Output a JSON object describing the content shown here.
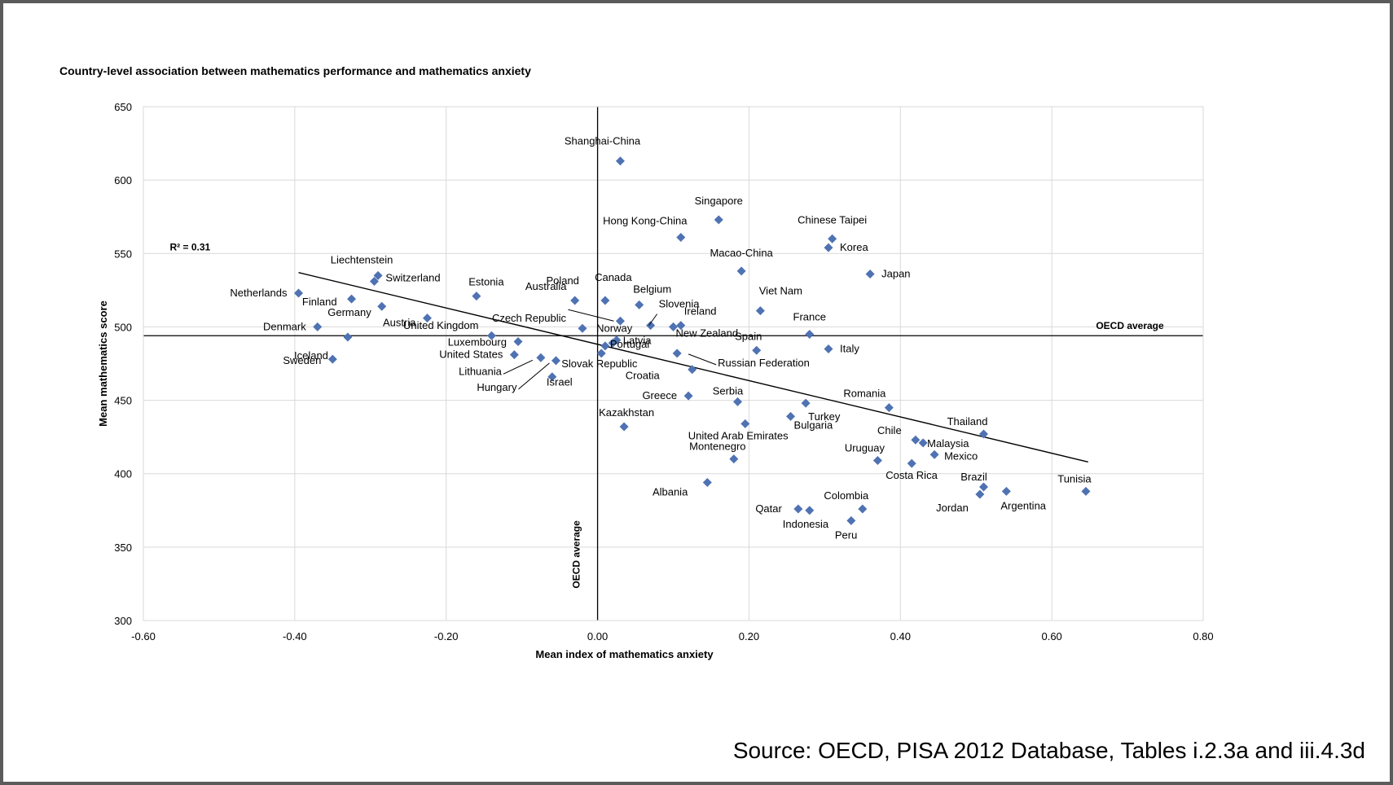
{
  "source": "Source: OECD, PISA 2012 Database, Tables i.2.3a and iii.4.3d",
  "chart_data": {
    "type": "scatter",
    "title": "Country-level association between mathematics performance and mathematics anxiety",
    "xlabel": "Mean index of mathematics anxiety",
    "ylabel": "Mean mathematics score",
    "xlim": [
      -0.6,
      0.8
    ],
    "ylim": [
      300,
      650
    ],
    "x_ticks": [
      -0.6,
      -0.4,
      -0.2,
      0.0,
      0.2,
      0.4,
      0.6,
      0.8
    ],
    "x_tick_labels": [
      "-0.60",
      "-0.40",
      "-0.20",
      "0.00",
      "0.20",
      "0.40",
      "0.60",
      "0.80"
    ],
    "y_ticks": [
      300,
      350,
      400,
      450,
      500,
      550,
      600,
      650
    ],
    "y_tick_labels": [
      "300",
      "350",
      "400",
      "450",
      "500",
      "550",
      "600",
      "650"
    ],
    "grid": true,
    "marker": "diamond",
    "marker_color": "#4f72b2",
    "r_squared_label": "R² = 0.31",
    "oecd_average_label": "OECD average",
    "oecd_average_x": 0.0,
    "oecd_average_y": 494,
    "trendline": {
      "x": [
        -0.395,
        0.648
      ],
      "y": [
        537,
        408
      ]
    },
    "points": [
      {
        "name": "Shanghai-China",
        "x": 0.03,
        "y": 613
      },
      {
        "name": "Singapore",
        "x": 0.16,
        "y": 573
      },
      {
        "name": "Hong Kong-China",
        "x": 0.11,
        "y": 561
      },
      {
        "name": "Chinese Taipei",
        "x": 0.31,
        "y": 560
      },
      {
        "name": "Korea",
        "x": 0.305,
        "y": 554
      },
      {
        "name": "Macao-China",
        "x": 0.19,
        "y": 538
      },
      {
        "name": "Japan",
        "x": 0.36,
        "y": 536
      },
      {
        "name": "Liechtenstein",
        "x": -0.29,
        "y": 535
      },
      {
        "name": "Switzerland",
        "x": -0.295,
        "y": 531
      },
      {
        "name": "Netherlands",
        "x": -0.395,
        "y": 523
      },
      {
        "name": "Estonia",
        "x": -0.16,
        "y": 521
      },
      {
        "name": "Finland",
        "x": -0.325,
        "y": 519
      },
      {
        "name": "Canada",
        "x": 0.01,
        "y": 518
      },
      {
        "name": "Poland",
        "x": -0.03,
        "y": 518
      },
      {
        "name": "Belgium",
        "x": 0.055,
        "y": 515
      },
      {
        "name": "Germany",
        "x": -0.285,
        "y": 514
      },
      {
        "name": "Viet Nam",
        "x": 0.215,
        "y": 511
      },
      {
        "name": "Austria",
        "x": -0.225,
        "y": 506
      },
      {
        "name": "Australia",
        "x": 0.03,
        "y": 504
      },
      {
        "name": "Ireland",
        "x": 0.11,
        "y": 501
      },
      {
        "name": "Slovenia",
        "x": 0.07,
        "y": 501
      },
      {
        "name": "Denmark",
        "x": -0.37,
        "y": 500
      },
      {
        "name": "New Zealand",
        "x": 0.1,
        "y": 500
      },
      {
        "name": "Czech Republic",
        "x": -0.02,
        "y": 499
      },
      {
        "name": "France",
        "x": 0.28,
        "y": 495
      },
      {
        "name": "United Kingdom",
        "x": -0.14,
        "y": 494
      },
      {
        "name": "Iceland",
        "x": -0.33,
        "y": 493
      },
      {
        "name": "Latvia",
        "x": 0.025,
        "y": 491
      },
      {
        "name": "Luxembourg",
        "x": -0.105,
        "y": 490
      },
      {
        "name": "Norway",
        "x": 0.02,
        "y": 489
      },
      {
        "name": "Portugal",
        "x": 0.01,
        "y": 487
      },
      {
        "name": "Italy",
        "x": 0.305,
        "y": 485
      },
      {
        "name": "Spain",
        "x": 0.21,
        "y": 484
      },
      {
        "name": "Russian Federation",
        "x": 0.105,
        "y": 482
      },
      {
        "name": "Slovak Republic",
        "x": 0.005,
        "y": 482
      },
      {
        "name": "United States",
        "x": -0.11,
        "y": 481
      },
      {
        "name": "Lithuania",
        "x": -0.075,
        "y": 479
      },
      {
        "name": "Sweden",
        "x": -0.35,
        "y": 478
      },
      {
        "name": "Hungary",
        "x": -0.055,
        "y": 477
      },
      {
        "name": "Croatia",
        "x": 0.125,
        "y": 471
      },
      {
        "name": "Israel",
        "x": -0.06,
        "y": 466
      },
      {
        "name": "Greece",
        "x": 0.12,
        "y": 453
      },
      {
        "name": "Serbia",
        "x": 0.185,
        "y": 449
      },
      {
        "name": "Turkey",
        "x": 0.275,
        "y": 448
      },
      {
        "name": "Romania",
        "x": 0.385,
        "y": 445
      },
      {
        "name": "Bulgaria",
        "x": 0.255,
        "y": 439
      },
      {
        "name": "United Arab Emirates",
        "x": 0.195,
        "y": 434
      },
      {
        "name": "Kazakhstan",
        "x": 0.035,
        "y": 432
      },
      {
        "name": "Thailand",
        "x": 0.51,
        "y": 427
      },
      {
        "name": "Chile",
        "x": 0.42,
        "y": 423
      },
      {
        "name": "Malaysia",
        "x": 0.43,
        "y": 421
      },
      {
        "name": "Mexico",
        "x": 0.445,
        "y": 413
      },
      {
        "name": "Montenegro",
        "x": 0.18,
        "y": 410
      },
      {
        "name": "Uruguay",
        "x": 0.37,
        "y": 409
      },
      {
        "name": "Costa Rica",
        "x": 0.415,
        "y": 407
      },
      {
        "name": "Albania",
        "x": 0.145,
        "y": 394
      },
      {
        "name": "Brazil",
        "x": 0.51,
        "y": 391
      },
      {
        "name": "Argentina",
        "x": 0.54,
        "y": 388
      },
      {
        "name": "Tunisia",
        "x": 0.645,
        "y": 388
      },
      {
        "name": "Jordan",
        "x": 0.505,
        "y": 386
      },
      {
        "name": "Colombia",
        "x": 0.35,
        "y": 376
      },
      {
        "name": "Qatar",
        "x": 0.265,
        "y": 376
      },
      {
        "name": "Indonesia",
        "x": 0.28,
        "y": 375
      },
      {
        "name": "Peru",
        "x": 0.335,
        "y": 368
      }
    ]
  }
}
